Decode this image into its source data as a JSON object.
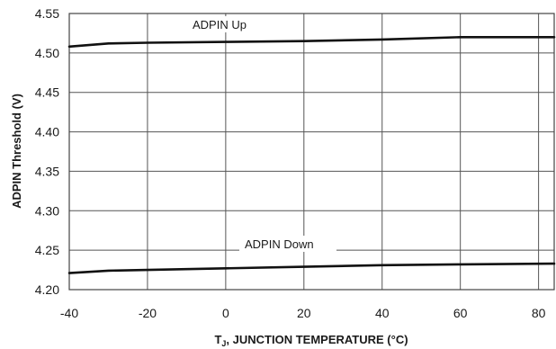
{
  "chart_data": {
    "type": "line",
    "title": "",
    "xlabel_prefix": "T",
    "xlabel_sub": "J",
    "xlabel_rest": ", JUNCTION TEMPERATURE (°C)",
    "ylabel": "ADPIN Threshold (V)",
    "xlim": [
      -40,
      84
    ],
    "ylim": [
      4.2,
      4.55
    ],
    "xticks": [
      "-40",
      "-20",
      "0",
      "20",
      "40",
      "60",
      "80"
    ],
    "yticks": [
      "4.55",
      "4.50",
      "4.45",
      "4.40",
      "4.35",
      "4.30",
      "4.25",
      "4.20"
    ],
    "grid": true,
    "series": [
      {
        "name": "ADPIN Up",
        "x": [
          -40,
          -30,
          -20,
          0,
          20,
          40,
          60,
          84
        ],
        "y": [
          4.508,
          4.512,
          4.513,
          4.514,
          4.515,
          4.517,
          4.52,
          4.52
        ]
      },
      {
        "name": "ADPIN Down",
        "x": [
          -40,
          -30,
          -20,
          0,
          20,
          40,
          60,
          84
        ],
        "y": [
          4.221,
          4.224,
          4.225,
          4.227,
          4.229,
          4.231,
          4.232,
          4.233
        ]
      }
    ]
  }
}
